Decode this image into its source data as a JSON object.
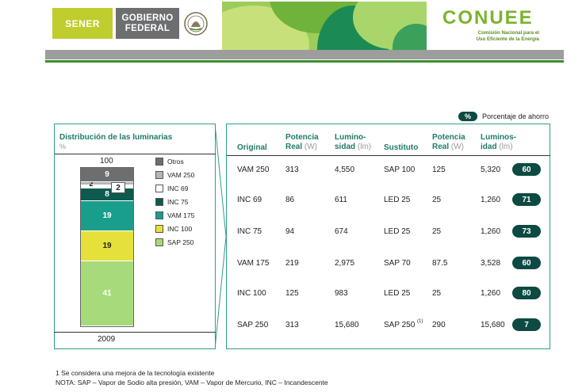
{
  "header": {
    "sener": "SENER",
    "gobierno_line1": "GOBIERNO",
    "gobierno_line2": "FEDERAL",
    "conuee_logo": "CONUEE",
    "conuee_sub1": "Comisión Nacional para el",
    "conuee_sub2": "Uso Eficiente de la Energía"
  },
  "legend_pct": {
    "badge": "%",
    "label": "Porcentaje de ahorro"
  },
  "left_panel": {
    "title": "Distribución de las luminarias",
    "unit": "%",
    "total": "100",
    "year": "2009"
  },
  "chart_data": {
    "type": "bar",
    "categories": [
      "2009"
    ],
    "series": [
      {
        "name": "SAP 250",
        "values": [
          41
        ],
        "color": "#a7da7a"
      },
      {
        "name": "INC 100",
        "values": [
          19
        ],
        "color": "#e6e13a"
      },
      {
        "name": "VAM 175",
        "values": [
          19
        ],
        "color": "#1a9e8c"
      },
      {
        "name": "INC 75",
        "values": [
          8
        ],
        "color": "#0f5a4e"
      },
      {
        "name": "INC 69",
        "values": [
          2
        ],
        "color": "#ffffff"
      },
      {
        "name": "VAM 250",
        "values": [
          2
        ],
        "color": "#b5b5b5"
      },
      {
        "name": "Otros",
        "values": [
          9
        ],
        "color": "#6d6e70"
      }
    ],
    "legend_order": [
      "Otros",
      "VAM 250",
      "INC 69",
      "INC 75",
      "VAM 175",
      "INC 100",
      "SAP 250"
    ],
    "total": 100
  },
  "table": {
    "headers": {
      "original": "Original",
      "potencia_real_1": "Potencia",
      "potencia_real_2": "Real",
      "potencia_unit": "(W)",
      "luminosidad_1": "Lumino-",
      "luminosidad_2": "sidad",
      "luminosidad_unit": "(lm)",
      "sustituto": "Sustituto",
      "potencia_real_b1": "Potencia",
      "potencia_real_b2": "Real",
      "potencia_unit_b": "(W)",
      "luminosidad_b1": "Luminos-",
      "luminosidad_b2": "idad",
      "luminosidad_unit_b": "(lm)"
    },
    "rows": [
      {
        "original": "VAM 250",
        "potencia": "313",
        "lum": "4,550",
        "sustituto": "SAP 100",
        "potencia2": "125",
        "lum2": "5,320",
        "ahorro": "60"
      },
      {
        "original": "INC 69",
        "potencia": "86",
        "lum": "611",
        "sustituto": "LED 25",
        "potencia2": "25",
        "lum2": "1,260",
        "ahorro": "71"
      },
      {
        "original": "INC 75",
        "potencia": "94",
        "lum": "674",
        "sustituto": "LED 25",
        "potencia2": "25",
        "lum2": "1,260",
        "ahorro": "73"
      },
      {
        "original": "VAM 175",
        "potencia": "219",
        "lum": "2,975",
        "sustituto": "SAP 70",
        "potencia2": "87.5",
        "lum2": "3,528",
        "ahorro": "60"
      },
      {
        "original": "INC 100",
        "potencia": "125",
        "lum": "983",
        "sustituto": "LED 25",
        "potencia2": "25",
        "lum2": "1,260",
        "ahorro": "80"
      },
      {
        "original": "SAP 250",
        "potencia": "313",
        "lum": "15,680",
        "sustituto": "SAP 250",
        "sustituto_sup": "(1)",
        "potencia2": "290",
        "lum2": "15,680",
        "ahorro": "7"
      }
    ]
  },
  "notes": {
    "note1": "1 Se considera una mejora de la tecnología existente",
    "note2": "NOTA: SAP – Vapor de Sodio alta presión, VAM – Vapor de Mercurio, INC – Incandescente"
  },
  "colors": {
    "teal_dark": "#0d4a42",
    "teal": "#1f7a68",
    "green": "#7bb32e"
  }
}
